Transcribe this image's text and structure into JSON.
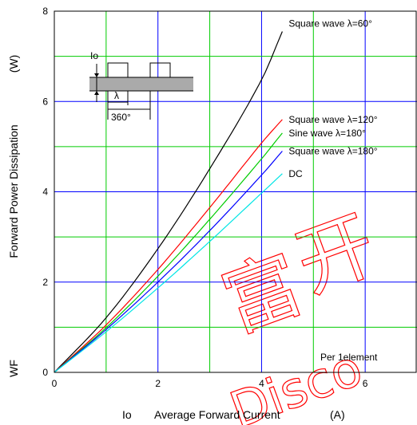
{
  "chart_data": {
    "type": "line",
    "ylabel_symbol": "WF",
    "ylabel": "Forward Power Dissipation",
    "ylabel_unit": "(W)",
    "xlabel_symbol": "Io",
    "xlabel": "Average Forward Current",
    "xlabel_unit": "(A)",
    "xlim": [
      0,
      7
    ],
    "ylim": [
      0,
      8
    ],
    "x_ticks": [
      "0",
      "2",
      "4",
      "6"
    ],
    "y_ticks": [
      "0",
      "2",
      "4",
      "6",
      "8"
    ],
    "grid": true,
    "note": "Per 1element",
    "series": [
      {
        "name": "Square wave λ=60°",
        "color": "#000000",
        "points": [
          [
            0,
            0
          ],
          [
            1,
            1.21
          ],
          [
            2,
            2.74
          ],
          [
            3,
            4.51
          ],
          [
            4,
            6.48
          ],
          [
            4.4,
            7.55
          ]
        ]
      },
      {
        "name": "Square wave λ=120°",
        "color": "#ff0000",
        "points": [
          [
            0,
            0
          ],
          [
            1,
            1.05
          ],
          [
            2,
            2.28
          ],
          [
            3,
            3.65
          ],
          [
            4,
            5.08
          ],
          [
            4.4,
            5.6
          ]
        ]
      },
      {
        "name": "Sine wave λ=180°",
        "color": "#00cc00",
        "points": [
          [
            0,
            0
          ],
          [
            1,
            0.99
          ],
          [
            2,
            2.13
          ],
          [
            3,
            3.39
          ],
          [
            4,
            4.73
          ],
          [
            4.4,
            5.3
          ]
        ]
      },
      {
        "name": "Square wave λ=180°",
        "color": "#0000ff",
        "points": [
          [
            0,
            0
          ],
          [
            1,
            0.95
          ],
          [
            2,
            2.0
          ],
          [
            3,
            3.14
          ],
          [
            4,
            4.37
          ],
          [
            4.4,
            4.9
          ]
        ]
      },
      {
        "name": "DC",
        "color": "#00e5e5",
        "points": [
          [
            0,
            0
          ],
          [
            1,
            0.9
          ],
          [
            2,
            1.87
          ],
          [
            3,
            2.9
          ],
          [
            4,
            3.97
          ],
          [
            4.4,
            4.4
          ]
        ]
      }
    ],
    "inset": {
      "current_label": "Io",
      "width_label": "λ",
      "period_label": "360°"
    },
    "watermark": [
      "富",
      "开",
      "Disco"
    ]
  }
}
